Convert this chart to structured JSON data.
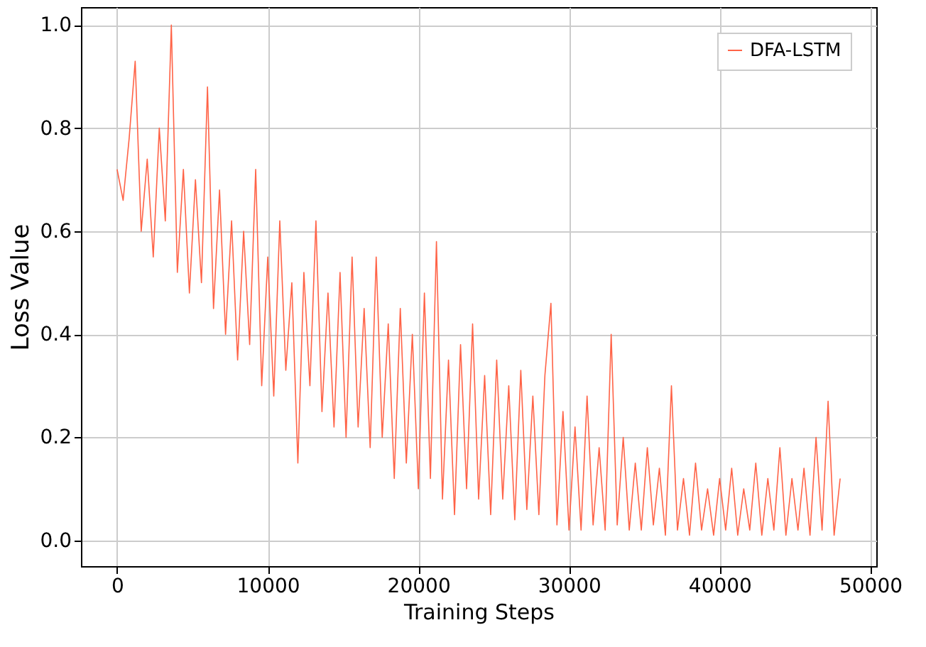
{
  "chart_data": {
    "type": "line",
    "xlabel": "Training Steps",
    "ylabel": "Loss Value",
    "x": [
      0,
      400,
      800,
      1200,
      1600,
      2000,
      2400,
      2800,
      3200,
      3600,
      4000,
      4400,
      4800,
      5200,
      5600,
      6000,
      6400,
      6800,
      7200,
      7600,
      8000,
      8400,
      8800,
      9200,
      9600,
      10000,
      10400,
      10800,
      11200,
      11600,
      12000,
      12400,
      12800,
      13200,
      13600,
      14000,
      14400,
      14800,
      15200,
      15600,
      16000,
      16400,
      16800,
      17200,
      17600,
      18000,
      18400,
      18800,
      19200,
      19600,
      20000,
      20400,
      20800,
      21200,
      21600,
      22000,
      22400,
      22800,
      23200,
      23600,
      24000,
      24400,
      24800,
      25200,
      25600,
      26000,
      26400,
      26800,
      27200,
      27600,
      28000,
      28400,
      28800,
      29200,
      29600,
      30000,
      30400,
      30800,
      31200,
      31600,
      32000,
      32400,
      32800,
      33200,
      33600,
      34000,
      34400,
      34800,
      35200,
      35600,
      36000,
      36400,
      36800,
      37200,
      37600,
      38000,
      38400,
      38800,
      39200,
      39600,
      40000,
      40400,
      40800,
      41200,
      41600,
      42000,
      42400,
      42800,
      43200,
      43600,
      44000,
      44400,
      44800,
      45200,
      45600,
      46000,
      46400,
      46800,
      47200,
      47600,
      48000
    ],
    "series": [
      {
        "name": "DFA-LSTM",
        "color": "#ff6347",
        "values": [
          0.72,
          0.66,
          0.78,
          0.93,
          0.6,
          0.74,
          0.55,
          0.8,
          0.62,
          1.0,
          0.52,
          0.72,
          0.48,
          0.7,
          0.5,
          0.88,
          0.45,
          0.68,
          0.4,
          0.62,
          0.35,
          0.6,
          0.38,
          0.72,
          0.3,
          0.55,
          0.28,
          0.62,
          0.33,
          0.5,
          0.15,
          0.52,
          0.3,
          0.62,
          0.25,
          0.48,
          0.22,
          0.52,
          0.2,
          0.55,
          0.22,
          0.45,
          0.18,
          0.55,
          0.2,
          0.42,
          0.12,
          0.45,
          0.15,
          0.4,
          0.1,
          0.48,
          0.12,
          0.58,
          0.08,
          0.35,
          0.05,
          0.38,
          0.1,
          0.42,
          0.08,
          0.32,
          0.05,
          0.35,
          0.08,
          0.3,
          0.04,
          0.33,
          0.06,
          0.28,
          0.05,
          0.32,
          0.46,
          0.03,
          0.25,
          0.02,
          0.22,
          0.02,
          0.28,
          0.03,
          0.18,
          0.02,
          0.4,
          0.03,
          0.2,
          0.02,
          0.15,
          0.02,
          0.18,
          0.03,
          0.14,
          0.01,
          0.3,
          0.02,
          0.12,
          0.01,
          0.15,
          0.02,
          0.1,
          0.01,
          0.12,
          0.02,
          0.14,
          0.01,
          0.1,
          0.02,
          0.15,
          0.01,
          0.12,
          0.02,
          0.18,
          0.01,
          0.12,
          0.02,
          0.14,
          0.01,
          0.2,
          0.02,
          0.27,
          0.01,
          0.12
        ]
      }
    ],
    "xlim": [
      -2400,
      50400
    ],
    "xticks": [
      0,
      10000,
      20000,
      30000,
      40000,
      50000
    ],
    "ylim": [
      -0.05,
      1.035
    ],
    "yticks": [
      {
        "value": 0,
        "label": "0.0"
      },
      0.2,
      0.4,
      0.6,
      0.8,
      {
        "value": 1,
        "label": "1.0"
      }
    ],
    "grid": true,
    "legend": "top right",
    "line_style": "solid",
    "marker": "none"
  }
}
